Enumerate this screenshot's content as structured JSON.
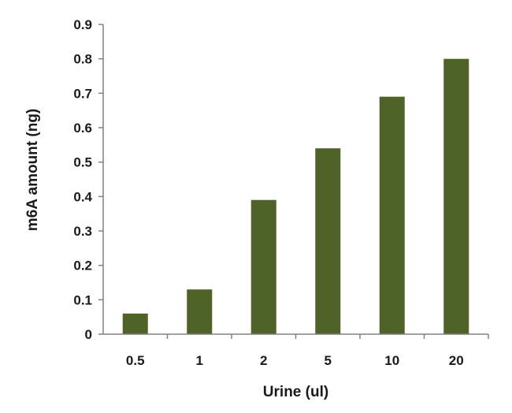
{
  "chart_data": {
    "type": "bar",
    "categories": [
      "0.5",
      "1",
      "2",
      "5",
      "10",
      "20"
    ],
    "values": [
      0.06,
      0.13,
      0.39,
      0.54,
      0.69,
      0.8
    ],
    "xlabel": "Urine (ul)",
    "ylabel": "m6A amount (ng)",
    "ylim": [
      0,
      0.9
    ],
    "yticks": [
      "0",
      "0.1",
      "0.2",
      "0.3",
      "0.4",
      "0.5",
      "0.6",
      "0.7",
      "0.8",
      "0.9"
    ],
    "bar_color": "#4f6228",
    "grid": false,
    "legend": "none"
  }
}
